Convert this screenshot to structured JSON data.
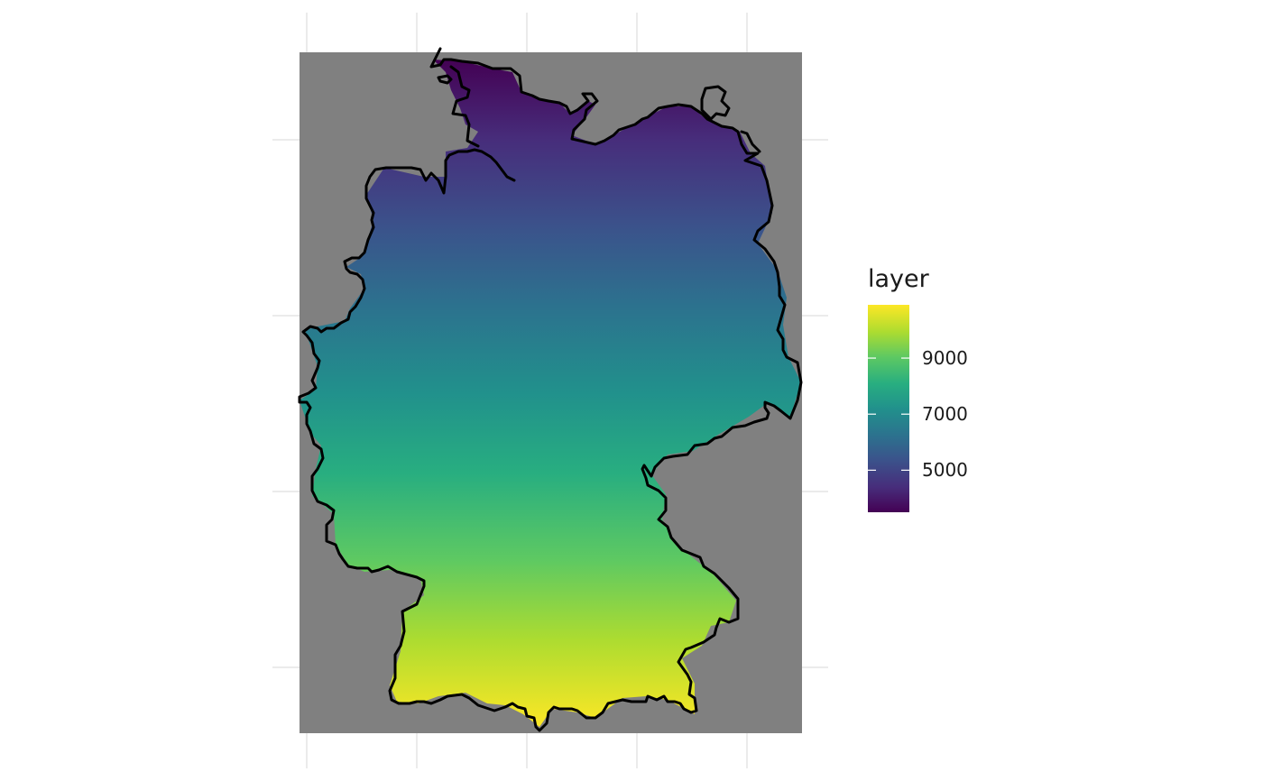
{
  "chart_data": {
    "type": "heatmap",
    "title": "",
    "xlabel": "",
    "ylabel": "",
    "fill_scale": "viridis",
    "fill_range": [
      3500,
      10900
    ],
    "gradient_direction": "north-to-south",
    "legend": {
      "title": "layer",
      "placement": "right",
      "ticks": [
        {
          "label": "9000",
          "value": 9000
        },
        {
          "label": "7000",
          "value": 7000
        },
        {
          "label": "5000",
          "value": 5000
        }
      ]
    },
    "background_fill": "#808080",
    "outline_color": "#000000",
    "region": "Germany"
  }
}
